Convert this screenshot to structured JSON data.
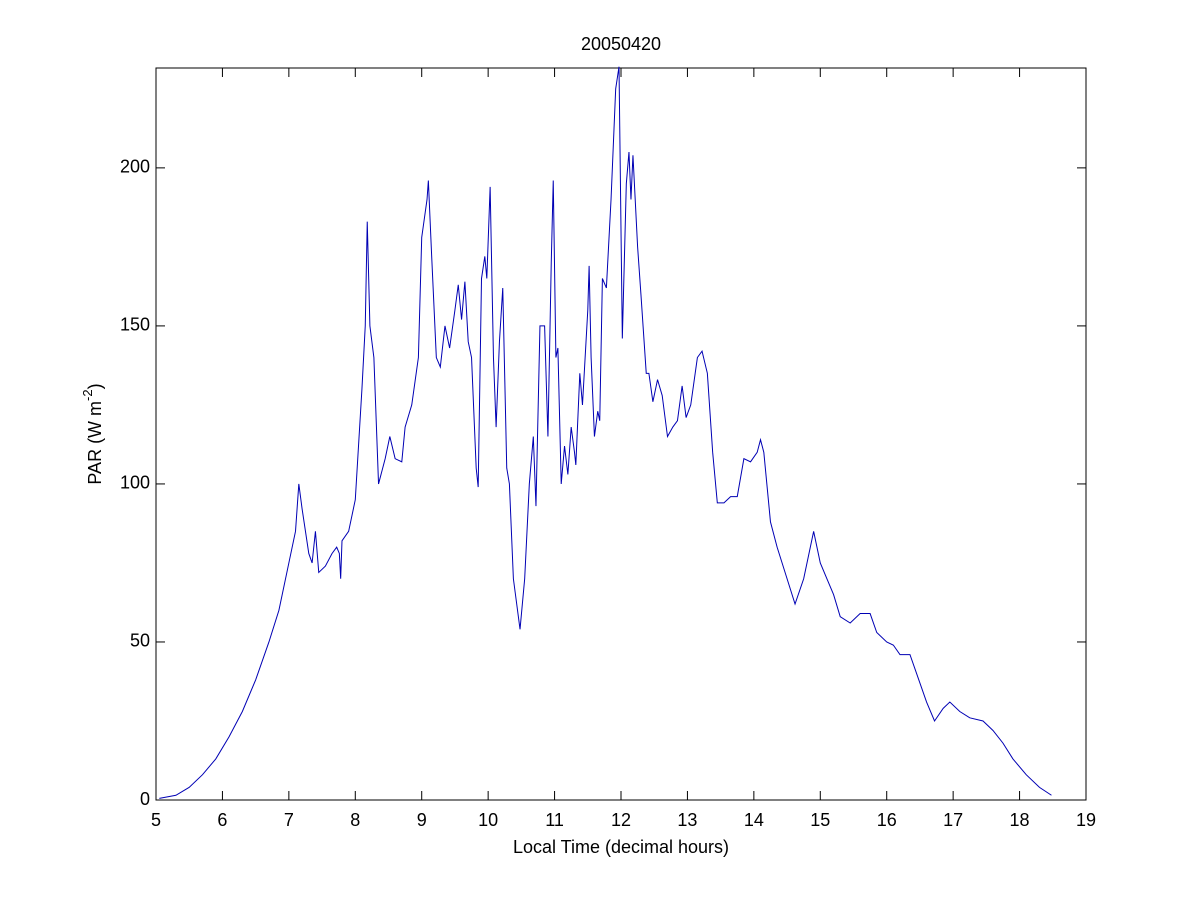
{
  "chart_data": {
    "type": "line",
    "title": "20050420",
    "xlabel": "Local Time (decimal hours)",
    "ylabel": [
      "PAR (W m",
      "-2",
      ")"
    ],
    "x": [
      5.05,
      5.3,
      5.5,
      5.7,
      5.9,
      6.1,
      6.3,
      6.5,
      6.7,
      6.85,
      7.0,
      7.1,
      7.15,
      7.2,
      7.3,
      7.35,
      7.4,
      7.45,
      7.55,
      7.65,
      7.72,
      7.76,
      7.78,
      7.8,
      7.9,
      8.0,
      8.1,
      8.15,
      8.18,
      8.22,
      8.28,
      8.35,
      8.45,
      8.52,
      8.6,
      8.7,
      8.75,
      8.85,
      8.95,
      9.0,
      9.08,
      9.1,
      9.15,
      9.22,
      9.28,
      9.35,
      9.42,
      9.5,
      9.55,
      9.6,
      9.65,
      9.7,
      9.75,
      9.82,
      9.85,
      9.9,
      9.95,
      9.98,
      10.03,
      10.08,
      10.12,
      10.17,
      10.22,
      10.28,
      10.32,
      10.38,
      10.48,
      10.55,
      10.62,
      10.68,
      10.72,
      10.78,
      10.85,
      10.9,
      10.95,
      10.98,
      11.02,
      11.05,
      11.1,
      11.15,
      11.2,
      11.25,
      11.3,
      11.32,
      11.38,
      11.42,
      11.5,
      11.52,
      11.55,
      11.6,
      11.65,
      11.68,
      11.72,
      11.78,
      11.85,
      11.92,
      11.97,
      12.02,
      12.08,
      12.12,
      12.15,
      12.18,
      12.25,
      12.3,
      12.38,
      12.42,
      12.48,
      12.55,
      12.62,
      12.7,
      12.78,
      12.85,
      12.92,
      12.98,
      13.05,
      13.15,
      13.22,
      13.3,
      13.38,
      13.45,
      13.55,
      13.65,
      13.75,
      13.85,
      13.95,
      14.05,
      14.1,
      14.15,
      14.25,
      14.35,
      14.5,
      14.62,
      14.75,
      14.9,
      15.0,
      15.1,
      15.2,
      15.3,
      15.45,
      15.6,
      15.75,
      15.85,
      16.0,
      16.1,
      16.2,
      16.35,
      16.45,
      16.6,
      16.72,
      16.85,
      16.95,
      17.1,
      17.25,
      17.45,
      17.6,
      17.75,
      17.9,
      18.1,
      18.3,
      18.48
    ],
    "series": [
      {
        "color": "#0000b4",
        "values": [
          0.5,
          1.5,
          4,
          8,
          13,
          20,
          28,
          38,
          50,
          60,
          75,
          85,
          100,
          92,
          78,
          75,
          85,
          72,
          74,
          78,
          80,
          78,
          70,
          82,
          85,
          95,
          130,
          150,
          183,
          150,
          140,
          100,
          108,
          115,
          108,
          107,
          118,
          125,
          140,
          178,
          190,
          196,
          172,
          140,
          137,
          150,
          143,
          155,
          163,
          152,
          164,
          145,
          140,
          105,
          99,
          165,
          172,
          165,
          194,
          140,
          118,
          145,
          162,
          105,
          100,
          70,
          54,
          70,
          100,
          115,
          93,
          150,
          150,
          115,
          170,
          196,
          140,
          143,
          100,
          112,
          103,
          118,
          110,
          106,
          135,
          125,
          155,
          169,
          140,
          115,
          123,
          120,
          165,
          162,
          190,
          225,
          232,
          146,
          195,
          205,
          190,
          204,
          175,
          160,
          135,
          135,
          126,
          133,
          128,
          115,
          118,
          120,
          131,
          121,
          125,
          140,
          142,
          135,
          110,
          94,
          94,
          96,
          96,
          108,
          107,
          110,
          114,
          110,
          88,
          80,
          70,
          62,
          70,
          85,
          75,
          70,
          65,
          58,
          56,
          59,
          59,
          53,
          50,
          49,
          46,
          46,
          40,
          31,
          25,
          29,
          31,
          28,
          26,
          25,
          22,
          18,
          13,
          8,
          4,
          1.5
        ]
      }
    ],
    "xlim": [
      5,
      19
    ],
    "xticks": [
      5,
      6,
      7,
      8,
      9,
      10,
      11,
      12,
      13,
      14,
      15,
      16,
      17,
      18,
      19
    ],
    "ylim": [
      0,
      231.6
    ],
    "yticks": [
      0,
      50,
      100,
      150,
      200
    ]
  }
}
